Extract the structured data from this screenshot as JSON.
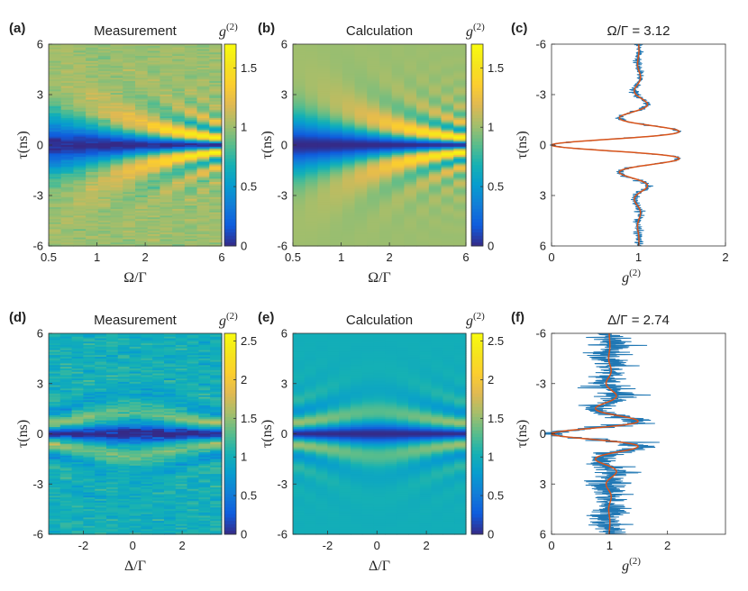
{
  "chart_data": [
    {
      "id": "a",
      "panel_label": "(a)",
      "title": "Measurement",
      "type": "heatmap",
      "xlabel": "Ω/Γ",
      "ylabel": "τ(ns)",
      "x_scale": "log",
      "xlim": [
        0.5,
        6
      ],
      "ylim": [
        -6,
        6
      ],
      "x_ticks": [
        0.5,
        1,
        2,
        6
      ],
      "x_tick_labels": [
        "0.5",
        "1",
        "2",
        "6"
      ],
      "y_ticks": [
        6,
        3,
        0,
        -3,
        -6
      ],
      "y_tick_labels": [
        "6",
        "3",
        "0",
        "-3",
        "-6"
      ],
      "colorbar": {
        "label": "g",
        "label_sup": "(2)",
        "range": [
          0,
          1.7
        ],
        "ticks": [
          0,
          0.5,
          1,
          1.5
        ],
        "tick_labels": [
          "0",
          "0.5",
          "1",
          "1.5"
        ]
      },
      "colormap": "parula",
      "columns": 14,
      "noise": 0.035
    },
    {
      "id": "b",
      "panel_label": "(b)",
      "title": "Calculation",
      "type": "heatmap",
      "xlabel": "Ω/Γ",
      "ylabel": "τ(ns)",
      "x_scale": "log",
      "xlim": [
        0.5,
        6
      ],
      "ylim": [
        -6,
        6
      ],
      "x_ticks": [
        0.5,
        1,
        2,
        6
      ],
      "x_tick_labels": [
        "0.5",
        "1",
        "2",
        "6"
      ],
      "y_ticks": [
        6,
        3,
        0,
        -3,
        -6
      ],
      "y_tick_labels": [
        "6",
        "3",
        "0",
        "-3",
        "-6"
      ],
      "colorbar": {
        "label": "g",
        "label_sup": "(2)",
        "range": [
          0,
          1.7
        ],
        "ticks": [
          0,
          0.5,
          1,
          1.5
        ],
        "tick_labels": [
          "0",
          "0.5",
          "1",
          "1.5"
        ]
      },
      "colormap": "parula",
      "columns": 14,
      "noise": 0
    },
    {
      "id": "c",
      "panel_label": "(c)",
      "title": "Ω/Γ = 3.12",
      "type": "line",
      "xlabel": "g",
      "xlabel_sup": "(2)",
      "ylabel": "τ(ns)",
      "xlim": [
        0,
        2
      ],
      "ylim": [
        -6,
        6
      ],
      "y_reversed": true,
      "x_ticks": [
        0,
        1,
        2
      ],
      "x_tick_labels": [
        "0",
        "1",
        "2"
      ],
      "y_ticks": [
        -6,
        -3,
        0,
        3,
        6
      ],
      "y_tick_labels": [
        "-6",
        "-3",
        "0",
        "3",
        "6"
      ],
      "omega_over_gamma": 3.12,
      "series": [
        {
          "role": "measured",
          "color": "#1f77b4",
          "noise": 0.025
        },
        {
          "role": "calculated",
          "color": "#d95319",
          "noise": 0
        }
      ]
    },
    {
      "id": "d",
      "panel_label": "(d)",
      "title": "Measurement",
      "type": "heatmap",
      "xlabel": "Δ/Γ",
      "ylabel": "τ(ns)",
      "x_scale": "linear",
      "xlim": [
        -3.4,
        3.6
      ],
      "ylim": [
        -6,
        6
      ],
      "x_ticks": [
        -2,
        0,
        2
      ],
      "x_tick_labels": [
        "-2",
        "0",
        "2"
      ],
      "y_ticks": [
        6,
        3,
        0,
        -3,
        -6
      ],
      "y_tick_labels": [
        "6",
        "3",
        "0",
        "-3",
        "-6"
      ],
      "colorbar": {
        "label": "g",
        "label_sup": "(2)",
        "range": [
          0,
          2.6
        ],
        "ticks": [
          0,
          0.5,
          1,
          1.5,
          2,
          2.5
        ],
        "tick_labels": [
          "0",
          "0.5",
          "1",
          "1.5",
          "2",
          "2.5"
        ]
      },
      "colormap": "parula",
      "columns": 15,
      "noise": 0.09
    },
    {
      "id": "e",
      "panel_label": "(e)",
      "title": "Calculation",
      "type": "heatmap",
      "xlabel": "Δ/Γ",
      "ylabel": "τ(ns)",
      "x_scale": "linear",
      "xlim": [
        -3.4,
        3.6
      ],
      "ylim": [
        -6,
        6
      ],
      "x_ticks": [
        -2,
        0,
        2
      ],
      "x_tick_labels": [
        "-2",
        "0",
        "2"
      ],
      "y_ticks": [
        6,
        3,
        0,
        -3,
        -6
      ],
      "y_tick_labels": [
        "6",
        "3",
        "0",
        "-3",
        "-6"
      ],
      "colorbar": {
        "label": "g",
        "label_sup": "(2)",
        "range": [
          0,
          2.6
        ],
        "ticks": [
          0,
          0.5,
          1,
          1.5,
          2,
          2.5
        ],
        "tick_labels": [
          "0",
          "0.5",
          "1",
          "1.5",
          "2",
          "2.5"
        ]
      },
      "colormap": "parula",
      "columns": 15,
      "noise": 0
    },
    {
      "id": "f",
      "panel_label": "(f)",
      "title": "Δ/Γ = 2.74",
      "type": "line",
      "xlabel": "g",
      "xlabel_sup": "(2)",
      "ylabel": "τ(ns)",
      "xlim": [
        0,
        3
      ],
      "ylim": [
        -6,
        6
      ],
      "y_reversed": true,
      "x_ticks": [
        0,
        1,
        2
      ],
      "x_tick_labels": [
        "0",
        "1",
        "2"
      ],
      "y_ticks": [
        -6,
        -3,
        0,
        3,
        6
      ],
      "y_tick_labels": [
        "-6",
        "-3",
        "0",
        "3",
        "6"
      ],
      "delta_over_gamma": 2.74,
      "series": [
        {
          "role": "measured",
          "color": "#1f77b4",
          "noise": 0.18
        },
        {
          "role": "calculated",
          "color": "#d95319",
          "noise": 0
        }
      ]
    }
  ]
}
